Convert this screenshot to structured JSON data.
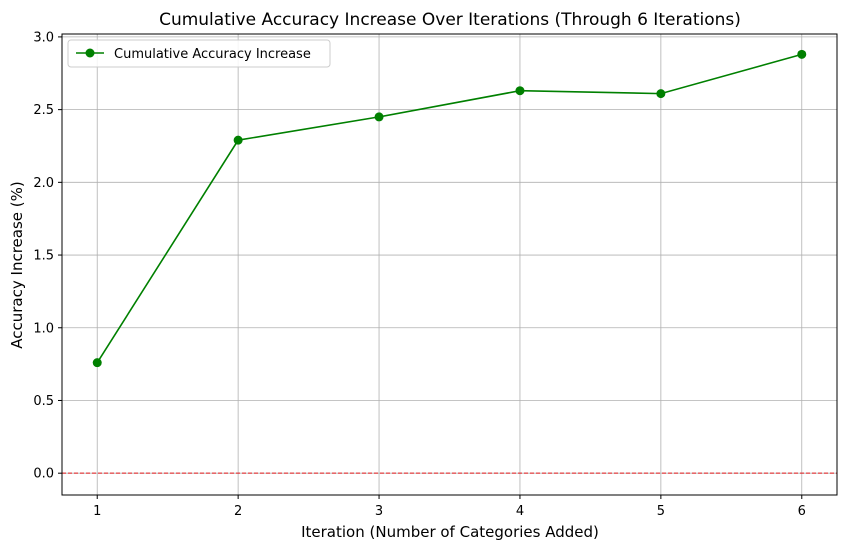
{
  "chart_data": {
    "type": "line",
    "title": "Cumulative Accuracy Increase Over Iterations (Through 6 Iterations)",
    "xlabel": "Iteration (Number of Categories Added)",
    "ylabel": "Accuracy Increase (%)",
    "x": [
      1,
      2,
      3,
      4,
      5,
      6
    ],
    "xlim": [
      0.75,
      6.25
    ],
    "ylim": [
      -0.15,
      3.02
    ],
    "xticks": [
      1,
      2,
      3,
      4,
      5,
      6
    ],
    "yticks": [
      0.0,
      0.5,
      1.0,
      1.5,
      2.0,
      2.5,
      3.0
    ],
    "xtick_labels": [
      "1",
      "2",
      "3",
      "4",
      "5",
      "6"
    ],
    "ytick_labels": [
      "0.0",
      "0.5",
      "1.0",
      "1.5",
      "2.0",
      "2.5",
      "3.0"
    ],
    "grid": true,
    "legend_position": "upper-left",
    "series": [
      {
        "name": "Cumulative Accuracy Increase",
        "values": [
          0.76,
          2.29,
          2.45,
          2.63,
          2.61,
          2.88
        ],
        "color": "#008000",
        "marker": "circle"
      }
    ],
    "reference_line": {
      "y": 0.0,
      "color": "#e31a1c",
      "style": "dashed"
    }
  }
}
